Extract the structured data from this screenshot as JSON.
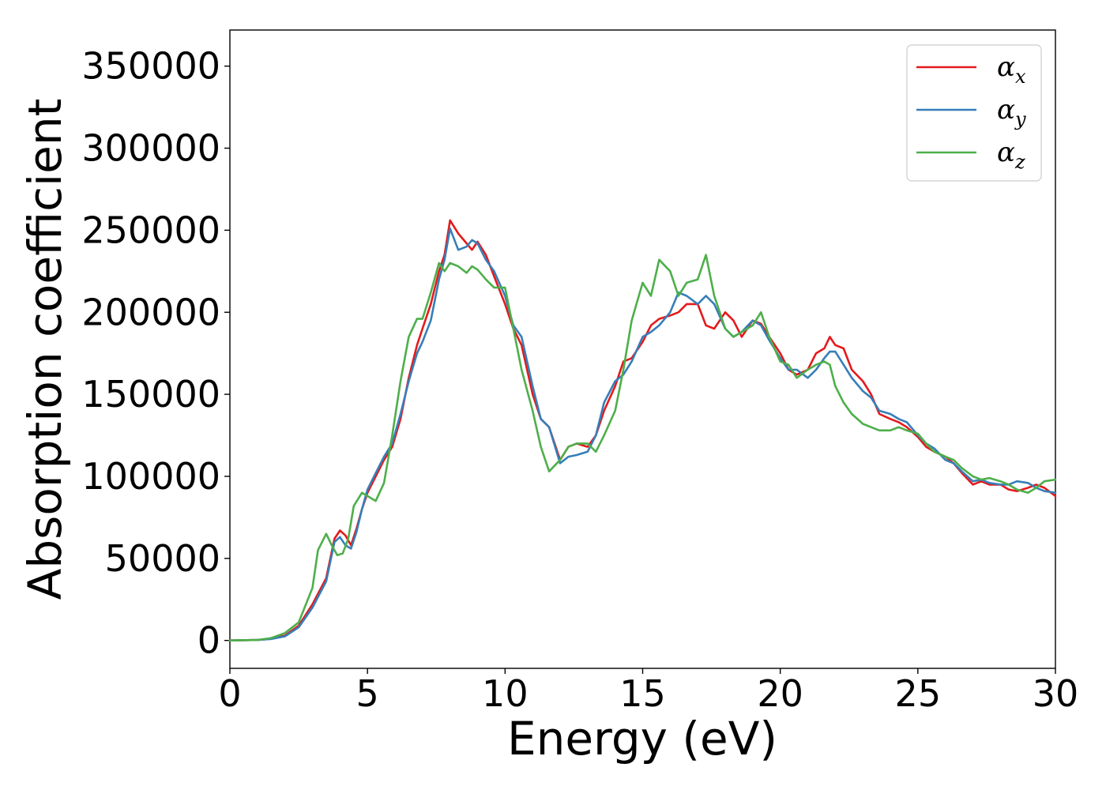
{
  "chart_data": {
    "type": "line",
    "title": "",
    "xlabel": "Energy (eV)",
    "ylabel": "Absorption coefficient",
    "xlim": [
      0,
      30
    ],
    "ylim": [
      -17000,
      372000
    ],
    "xticks": [
      0,
      5,
      10,
      15,
      20,
      25,
      30
    ],
    "yticks": [
      0,
      50000,
      100000,
      150000,
      200000,
      250000,
      300000,
      350000
    ],
    "grid": false,
    "legend_position": "top-right",
    "series": [
      {
        "name": "α",
        "subscript": "x",
        "color": "#e41a1c",
        "x": [
          0,
          1,
          1.5,
          2,
          2.5,
          3,
          3.5,
          3.8,
          4,
          4.2,
          4.4,
          4.6,
          4.8,
          5,
          5.3,
          5.6,
          5.9,
          6.2,
          6.5,
          6.8,
          7.0,
          7.3,
          7.6,
          7.8,
          8.0,
          8.3,
          8.6,
          8.8,
          9.0,
          9.3,
          9.6,
          10.0,
          10.3,
          10.6,
          11.0,
          11.3,
          11.6,
          12.0,
          12.3,
          12.6,
          13.0,
          13.3,
          13.6,
          14.0,
          14.3,
          14.6,
          15.0,
          15.3,
          15.6,
          16.0,
          16.3,
          16.6,
          17.0,
          17.3,
          17.6,
          18.0,
          18.3,
          18.6,
          19.0,
          19.3,
          19.6,
          20.0,
          20.3,
          20.6,
          21.0,
          21.3,
          21.6,
          21.8,
          22.0,
          22.3,
          22.6,
          23.0,
          23.3,
          23.6,
          24.0,
          24.3,
          24.6,
          25.0,
          25.3,
          25.6,
          26.0,
          26.3,
          26.6,
          27.0,
          27.3,
          27.6,
          28.0,
          28.3,
          28.6,
          29.0,
          29.3,
          29.6,
          30.0
        ],
        "values": [
          0,
          300,
          1000,
          3000,
          9000,
          22000,
          38000,
          62000,
          67000,
          64000,
          58000,
          68000,
          80000,
          90000,
          100000,
          110000,
          118000,
          135000,
          160000,
          180000,
          190000,
          205000,
          225000,
          235000,
          256000,
          248000,
          242000,
          238000,
          243000,
          235000,
          222000,
          205000,
          190000,
          180000,
          150000,
          135000,
          130000,
          110000,
          118000,
          120000,
          118000,
          125000,
          140000,
          155000,
          170000,
          172000,
          182000,
          192000,
          196000,
          198000,
          200000,
          205000,
          205000,
          192000,
          190000,
          200000,
          195000,
          185000,
          195000,
          193000,
          185000,
          175000,
          165000,
          162000,
          165000,
          175000,
          178000,
          185000,
          180000,
          178000,
          165000,
          158000,
          150000,
          138000,
          135000,
          133000,
          130000,
          124000,
          118000,
          115000,
          112000,
          108000,
          102000,
          95000,
          97000,
          95000,
          95000,
          92000,
          91000,
          93000,
          95000,
          93000,
          88000
        ]
      },
      {
        "name": "α",
        "subscript": "y",
        "color": "#377eb8",
        "x": [
          0,
          1,
          1.5,
          2,
          2.5,
          3,
          3.5,
          3.8,
          4,
          4.2,
          4.4,
          4.6,
          4.8,
          5,
          5.3,
          5.6,
          5.9,
          6.2,
          6.5,
          6.8,
          7.0,
          7.3,
          7.6,
          7.8,
          8.0,
          8.3,
          8.6,
          8.8,
          9.0,
          9.3,
          9.6,
          10.0,
          10.3,
          10.6,
          11.0,
          11.3,
          11.6,
          12.0,
          12.3,
          12.6,
          13.0,
          13.3,
          13.6,
          14.0,
          14.3,
          14.6,
          15.0,
          15.3,
          15.6,
          16.0,
          16.3,
          16.6,
          17.0,
          17.3,
          17.6,
          18.0,
          18.3,
          18.6,
          19.0,
          19.3,
          19.6,
          20.0,
          20.3,
          20.6,
          21.0,
          21.3,
          21.6,
          21.8,
          22.0,
          22.3,
          22.6,
          23.0,
          23.3,
          23.6,
          24.0,
          24.3,
          24.6,
          25.0,
          25.3,
          25.6,
          26.0,
          26.3,
          26.6,
          27.0,
          27.3,
          27.6,
          28.0,
          28.3,
          28.6,
          29.0,
          29.3,
          29.6,
          30.0
        ],
        "values": [
          0,
          300,
          900,
          2500,
          8000,
          20000,
          36000,
          60000,
          63000,
          58000,
          56000,
          66000,
          80000,
          92000,
          102000,
          112000,
          120000,
          138000,
          158000,
          175000,
          182000,
          195000,
          220000,
          232000,
          251000,
          238000,
          240000,
          244000,
          242000,
          232000,
          225000,
          210000,
          192000,
          185000,
          155000,
          135000,
          130000,
          108000,
          112000,
          113000,
          115000,
          125000,
          145000,
          158000,
          162000,
          170000,
          185000,
          188000,
          192000,
          200000,
          212000,
          210000,
          205000,
          210000,
          205000,
          190000,
          185000,
          188000,
          195000,
          192000,
          183000,
          172000,
          165000,
          165000,
          160000,
          165000,
          172000,
          176000,
          176000,
          168000,
          160000,
          152000,
          148000,
          140000,
          138000,
          135000,
          133000,
          125000,
          120000,
          117000,
          110000,
          108000,
          103000,
          97000,
          98000,
          96000,
          95000,
          95000,
          97000,
          96000,
          93000,
          91000,
          90000
        ]
      },
      {
        "name": "α",
        "subscript": "z",
        "color": "#4daf4a",
        "x": [
          0,
          1,
          1.5,
          2,
          2.5,
          3,
          3.2,
          3.5,
          3.7,
          3.9,
          4.1,
          4.3,
          4.5,
          4.8,
          5.0,
          5.3,
          5.6,
          5.9,
          6.2,
          6.5,
          6.8,
          7.0,
          7.3,
          7.6,
          7.8,
          8.0,
          8.3,
          8.6,
          8.8,
          9.0,
          9.3,
          9.6,
          10.0,
          10.3,
          10.6,
          11.0,
          11.3,
          11.6,
          12.0,
          12.3,
          12.6,
          13.0,
          13.3,
          13.6,
          14.0,
          14.3,
          14.6,
          15.0,
          15.3,
          15.6,
          16.0,
          16.3,
          16.6,
          17.0,
          17.3,
          17.6,
          18.0,
          18.3,
          18.6,
          19.0,
          19.3,
          19.6,
          20.0,
          20.3,
          20.6,
          21.0,
          21.3,
          21.6,
          21.8,
          22.0,
          22.3,
          22.6,
          23.0,
          23.3,
          23.6,
          24.0,
          24.3,
          24.6,
          25.0,
          25.3,
          25.6,
          26.0,
          26.3,
          26.6,
          27.0,
          27.3,
          27.6,
          28.0,
          28.3,
          28.6,
          29.0,
          29.3,
          29.6,
          30.0
        ],
        "values": [
          0,
          300,
          1500,
          4500,
          11000,
          32000,
          55000,
          65000,
          58000,
          52000,
          53000,
          62000,
          82000,
          90000,
          88000,
          85000,
          96000,
          125000,
          158000,
          185000,
          196000,
          196000,
          212000,
          230000,
          225000,
          230000,
          228000,
          224000,
          228000,
          226000,
          220000,
          215000,
          215000,
          190000,
          165000,
          140000,
          118000,
          103000,
          110000,
          118000,
          120000,
          120000,
          115000,
          125000,
          140000,
          165000,
          195000,
          218000,
          210000,
          232000,
          225000,
          210000,
          218000,
          220000,
          235000,
          210000,
          190000,
          185000,
          188000,
          192000,
          200000,
          185000,
          170000,
          168000,
          160000,
          165000,
          168000,
          170000,
          168000,
          155000,
          145000,
          138000,
          132000,
          130000,
          128000,
          128000,
          130000,
          128000,
          126000,
          120000,
          115000,
          112000,
          110000,
          105000,
          100000,
          98000,
          99000,
          97000,
          95000,
          92000,
          90000,
          93000,
          97000,
          98000
        ]
      }
    ]
  }
}
